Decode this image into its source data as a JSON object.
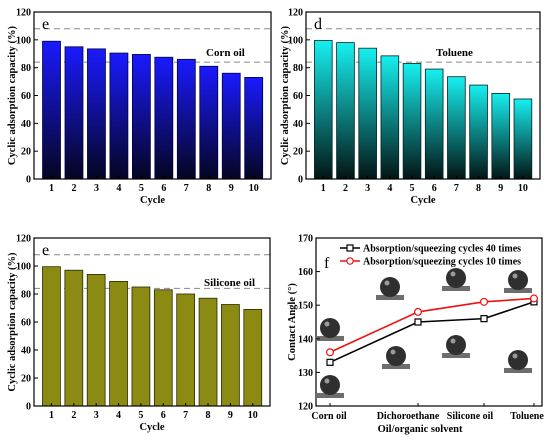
{
  "chart_data": [
    {
      "type": "bar",
      "panel_label": "e",
      "series_label": "Corn oil",
      "categories": [
        "1",
        "2",
        "3",
        "4",
        "5",
        "6",
        "7",
        "8",
        "9",
        "10"
      ],
      "values": [
        99,
        95,
        93.5,
        90.5,
        89.5,
        87.5,
        86,
        81,
        76,
        73
      ],
      "xlabel": "Cycle",
      "ylabel": "Cyclic adsorption capacity (%)",
      "ylim": [
        0,
        120
      ],
      "yticks": [
        0,
        20,
        40,
        60,
        80,
        100,
        120
      ],
      "reference_lines": [
        108,
        84
      ],
      "colors": {
        "top": "#1a1aff",
        "bottom": "#050520"
      }
    },
    {
      "type": "bar",
      "panel_label": "d",
      "series_label": "Toluene",
      "categories": [
        "1",
        "2",
        "3",
        "4",
        "5",
        "6",
        "7",
        "8",
        "9",
        "10"
      ],
      "values": [
        99.5,
        98,
        94,
        88.5,
        83,
        79,
        73.5,
        67.5,
        61.5,
        57.5
      ],
      "xlabel": "Cycle",
      "ylabel": "Cyclic adsorption capacity (%)",
      "ylim": [
        0,
        120
      ],
      "yticks": [
        0,
        20,
        40,
        60,
        80,
        100,
        120
      ],
      "reference_lines": [
        108,
        84
      ],
      "colors": {
        "top": "#16f0f0",
        "bottom": "#031414"
      }
    },
    {
      "type": "bar",
      "panel_label": "e",
      "series_label": "Silicone oil",
      "categories": [
        "1",
        "2",
        "3",
        "4",
        "5",
        "6",
        "7",
        "8",
        "9",
        "10"
      ],
      "values": [
        99.5,
        97,
        94,
        89,
        85,
        83,
        80,
        77,
        72.5,
        69
      ],
      "xlabel": "Cycle",
      "ylabel": "Cyclic adsorption capacity (%)",
      "ylim": [
        0,
        120
      ],
      "yticks": [
        0,
        20,
        40,
        60,
        80,
        100,
        120
      ],
      "reference_lines": [
        108,
        84
      ],
      "colors": {
        "fill": "#8b8a12",
        "stroke": "#2a2a05"
      }
    },
    {
      "type": "line",
      "panel_label": "f",
      "categories": [
        "Corn oil",
        "Dichoroethane",
        "Silicone oil",
        "Toluene"
      ],
      "xlabel": "Oil/organic solvent",
      "ylabel": "Contact Angle (°)",
      "ylim": [
        120,
        170
      ],
      "yticks": [
        120,
        130,
        140,
        150,
        160,
        170
      ],
      "legend_position": "top",
      "series": [
        {
          "name": "Absorption/squeezing cycles 40 times",
          "values": [
            133,
            145,
            146,
            151
          ],
          "color": "#000000",
          "marker": "square"
        },
        {
          "name": "Absorption/squeezing cycles 10 times",
          "values": [
            136,
            148,
            151,
            152
          ],
          "color": "#ee1111",
          "marker": "circle"
        }
      ]
    }
  ]
}
